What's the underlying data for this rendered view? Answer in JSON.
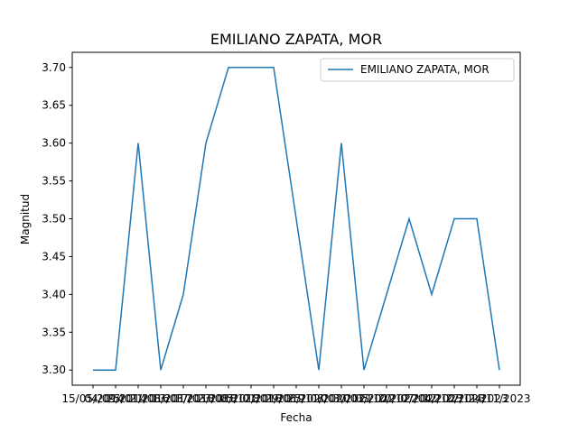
{
  "chart_data": {
    "type": "line",
    "title": "EMILIANO ZAPATA, MOR",
    "xlabel": "Fecha",
    "ylabel": "Magnitud",
    "ylim": [
      3.28,
      3.72
    ],
    "yticks": [
      "3.30",
      "3.35",
      "3.40",
      "3.45",
      "3.50",
      "3.55",
      "3.60",
      "3.65",
      "3.70"
    ],
    "categories": [
      "15/05/2014",
      "04/09/2014",
      "25/01/2016",
      "21/08/2017",
      "13/03/2018",
      "17/03/2018",
      "23/08/2018",
      "05/12/2018",
      "01/01/2019",
      "29/06/2020",
      "25/11/2020",
      "08/07/2021",
      "30/03/2022",
      "05/10/2022",
      "20/12/2022",
      "07/04/2023",
      "12/10/2023",
      "22/11/2023",
      "24/11/2023"
    ],
    "series": [
      {
        "name": "EMILIANO ZAPATA, MOR",
        "color": "#1f77b4",
        "values": [
          3.3,
          3.3,
          3.6,
          3.3,
          3.4,
          3.6,
          3.7,
          3.7,
          3.7,
          3.5,
          3.3,
          3.6,
          3.3,
          3.4,
          3.5,
          3.4,
          3.5,
          3.5,
          3.3
        ]
      }
    ],
    "legend": "top-right",
    "grid": false
  }
}
